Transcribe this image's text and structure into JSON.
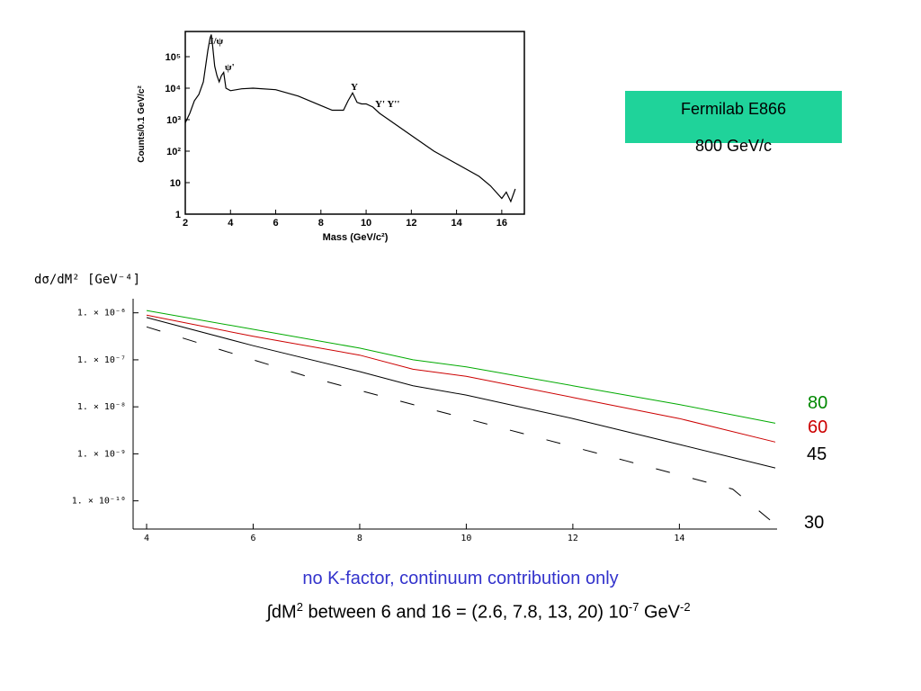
{
  "badge": {
    "line1": "Fermilab E866",
    "line2": "800 GeV/c",
    "color": "#1fd39a"
  },
  "chart_data": [
    {
      "type": "line",
      "title": "",
      "xlabel": "Mass (GeV/c²)",
      "ylabel": "Counts/0.1 GeV/c²",
      "xlim": [
        2,
        17
      ],
      "ylim_log10": [
        0,
        5.8
      ],
      "yscale": "log",
      "x_ticks": [
        "2",
        "4",
        "6",
        "8",
        "10",
        "12",
        "14",
        "16"
      ],
      "y_ticks": [
        "1",
        "10",
        "10²",
        "10³",
        "10⁴",
        "10⁵"
      ],
      "annotations": [
        "J/ψ",
        "ψ'",
        "Υ",
        "Υ' Υ''"
      ],
      "series": [
        {
          "x": [
            2.0,
            2.2,
            2.4,
            2.6,
            2.8,
            2.9,
            3.0,
            3.1,
            3.15,
            3.2,
            3.3,
            3.4,
            3.5,
            3.6,
            3.7,
            3.8,
            4.0,
            4.5,
            5,
            6,
            7,
            8,
            8.5,
            9,
            9.2,
            9.4,
            9.5,
            9.6,
            9.8,
            10.0,
            10.3,
            10.6,
            11,
            12,
            13,
            14,
            15,
            15.5,
            16,
            16.2,
            16.4,
            16.6
          ],
          "log10y": [
            2.9,
            3.2,
            3.6,
            3.8,
            4.2,
            4.7,
            5.2,
            5.6,
            5.7,
            5.4,
            4.7,
            4.4,
            4.2,
            4.4,
            4.5,
            4.0,
            3.92,
            3.98,
            4.0,
            3.95,
            3.75,
            3.45,
            3.3,
            3.3,
            3.6,
            3.85,
            3.7,
            3.55,
            3.5,
            3.5,
            3.4,
            3.2,
            3.0,
            2.5,
            2.0,
            1.6,
            1.2,
            0.9,
            0.5,
            0.7,
            0.4,
            0.8
          ]
        }
      ]
    },
    {
      "type": "line",
      "title": "dσ/dM² [GeV⁻⁴]",
      "xlabel": "",
      "ylabel": "dσ/dM² [GeV⁻⁴]",
      "xlim": [
        4,
        15.8
      ],
      "yscale": "log",
      "ylim_log10": [
        -10.6,
        -5.7
      ],
      "x_ticks": [
        "4",
        "6",
        "8",
        "10",
        "12",
        "14"
      ],
      "y_ticks": [
        "1. × 10⁻⁶",
        "1. × 10⁻⁷",
        "1. × 10⁻⁸",
        "1. × 10⁻⁹",
        "1. × 10⁻¹⁰"
      ],
      "series": [
        {
          "name": "80",
          "color": "#00aa00",
          "dash": "solid",
          "x": [
            4,
            6,
            8,
            9,
            10,
            12,
            14,
            15.8
          ],
          "log10y": [
            -5.95,
            -6.35,
            -6.75,
            -7.0,
            -7.15,
            -7.55,
            -7.95,
            -8.35
          ]
        },
        {
          "name": "60",
          "color": "#cc0000",
          "dash": "solid",
          "x": [
            4,
            6,
            8,
            9,
            10,
            12,
            14,
            15.8
          ],
          "log10y": [
            -6.05,
            -6.5,
            -6.9,
            -7.2,
            -7.35,
            -7.8,
            -8.25,
            -8.75
          ]
        },
        {
          "name": "45",
          "color": "#000000",
          "dash": "solid",
          "x": [
            4,
            6,
            8,
            9,
            10,
            12,
            14,
            15.8
          ],
          "log10y": [
            -6.1,
            -6.7,
            -7.25,
            -7.55,
            -7.75,
            -8.25,
            -8.8,
            -9.3
          ]
        },
        {
          "name": "30",
          "color": "#000000",
          "dash": "dashed",
          "x": [
            4,
            5,
            6,
            7,
            8,
            9,
            10,
            11,
            12,
            13,
            14,
            15,
            15.8
          ],
          "log10y": [
            -6.3,
            -6.65,
            -7.0,
            -7.35,
            -7.65,
            -7.95,
            -8.25,
            -8.55,
            -8.85,
            -9.15,
            -9.45,
            -9.75,
            -10.5
          ]
        }
      ]
    }
  ],
  "curve_labels": [
    {
      "text": "80",
      "color": "#008800"
    },
    {
      "text": "60",
      "color": "#cc0000"
    },
    {
      "text": "45",
      "color": "#000000"
    },
    {
      "text": "30",
      "color": "#000000"
    }
  ],
  "captions": {
    "line1": "no K-factor, continuum contribution only",
    "line2_integral": "∫dM",
    "line2_sup1": "2",
    "line2_mid": " between 6 and 16 = (2.6, 7.8, 13, 20) 10",
    "line2_sup2": "-7",
    "line2_unit": " GeV",
    "line2_sup3": "-2"
  }
}
